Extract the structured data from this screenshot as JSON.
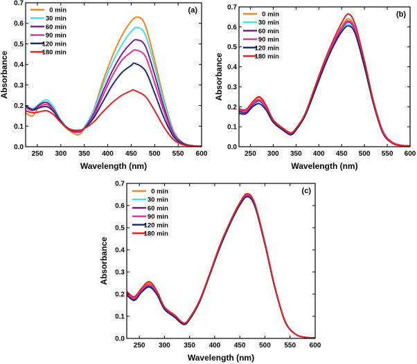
{
  "chart_data": [
    {
      "type": "line",
      "panel_label": "(a)",
      "xlabel": "Wavelength (nm)",
      "ylabel": "Absorbance",
      "xlim": [
        225,
        600
      ],
      "ylim": [
        0.0,
        0.7
      ],
      "xticks": [
        250,
        300,
        350,
        400,
        450,
        500,
        550,
        600
      ],
      "yticks": [
        0.0,
        0.1,
        0.2,
        0.3,
        0.4,
        0.5,
        0.6,
        0.7
      ],
      "ytick_labels": [
        "0.0",
        "0.1",
        "0.2",
        "0.3",
        "0.4",
        "0.5",
        "0.6",
        "0.7"
      ],
      "legend_position": "top-left",
      "series": [
        {
          "name": "0 min",
          "color": "#f5841f",
          "x": [
            225,
            240,
            255,
            270,
            285,
            300,
            320,
            338,
            350,
            370,
            390,
            410,
            430,
            450,
            465,
            480,
            500,
            520,
            540,
            560,
            580,
            600
          ],
          "y": [
            0.165,
            0.15,
            0.2,
            0.215,
            0.18,
            0.12,
            0.075,
            0.058,
            0.09,
            0.18,
            0.32,
            0.44,
            0.54,
            0.61,
            0.63,
            0.59,
            0.42,
            0.23,
            0.08,
            0.02,
            0.005,
            0.002
          ]
        },
        {
          "name": "30 min",
          "color": "#3fe0f0",
          "x": [
            225,
            240,
            255,
            270,
            285,
            300,
            320,
            338,
            350,
            370,
            390,
            410,
            430,
            450,
            463,
            480,
            500,
            520,
            540,
            560,
            580,
            600
          ],
          "y": [
            0.2,
            0.185,
            0.21,
            0.228,
            0.19,
            0.13,
            0.082,
            0.072,
            0.095,
            0.175,
            0.3,
            0.41,
            0.495,
            0.56,
            0.58,
            0.545,
            0.39,
            0.215,
            0.075,
            0.02,
            0.005,
            0.002
          ]
        },
        {
          "name": "60 min",
          "color": "#7b1f8a",
          "x": [
            225,
            240,
            255,
            270,
            285,
            300,
            320,
            338,
            350,
            370,
            390,
            410,
            430,
            450,
            462,
            480,
            500,
            520,
            540,
            560,
            580,
            600
          ],
          "y": [
            0.2,
            0.18,
            0.205,
            0.215,
            0.18,
            0.125,
            0.08,
            0.07,
            0.09,
            0.16,
            0.27,
            0.37,
            0.45,
            0.505,
            0.52,
            0.49,
            0.35,
            0.19,
            0.065,
            0.018,
            0.005,
            0.002
          ]
        },
        {
          "name": "90 min",
          "color": "#e62fa0",
          "x": [
            225,
            240,
            255,
            270,
            285,
            300,
            320,
            338,
            350,
            370,
            390,
            410,
            430,
            450,
            460,
            480,
            500,
            520,
            540,
            560,
            580,
            600
          ],
          "y": [
            0.19,
            0.175,
            0.195,
            0.205,
            0.175,
            0.12,
            0.08,
            0.072,
            0.088,
            0.15,
            0.25,
            0.345,
            0.42,
            0.46,
            0.47,
            0.44,
            0.31,
            0.17,
            0.058,
            0.016,
            0.004,
            0.002
          ]
        },
        {
          "name": "120 min",
          "color": "#1d2a7a",
          "x": [
            225,
            240,
            255,
            270,
            285,
            300,
            320,
            338,
            350,
            370,
            390,
            410,
            430,
            450,
            458,
            480,
            500,
            520,
            540,
            560,
            580,
            600
          ],
          "y": [
            0.2,
            0.18,
            0.19,
            0.195,
            0.17,
            0.12,
            0.082,
            0.078,
            0.088,
            0.14,
            0.22,
            0.3,
            0.36,
            0.395,
            0.405,
            0.37,
            0.26,
            0.14,
            0.05,
            0.014,
            0.004,
            0.002
          ]
        },
        {
          "name": "180 min",
          "color": "#e8201f",
          "x": [
            225,
            240,
            255,
            270,
            285,
            300,
            320,
            338,
            350,
            370,
            390,
            410,
            430,
            450,
            456,
            480,
            500,
            520,
            540,
            560,
            580,
            600
          ],
          "y": [
            0.175,
            0.165,
            0.17,
            0.175,
            0.155,
            0.118,
            0.085,
            0.08,
            0.088,
            0.12,
            0.17,
            0.215,
            0.25,
            0.272,
            0.275,
            0.245,
            0.175,
            0.095,
            0.035,
            0.01,
            0.003,
            0.002
          ]
        }
      ]
    },
    {
      "type": "line",
      "panel_label": "(b)",
      "xlabel": "Wavelength (nm)",
      "ylabel": "Absorbance",
      "xlim": [
        225,
        600
      ],
      "ylim": [
        0.0,
        0.7
      ],
      "xticks": [
        250,
        300,
        350,
        400,
        450,
        500,
        550,
        600
      ],
      "yticks": [
        0.0,
        0.1,
        0.2,
        0.3,
        0.4,
        0.5,
        0.6,
        0.7
      ],
      "ytick_labels": [
        "0.0",
        "0.1",
        "0.2",
        "0.3",
        "0.4",
        "0.5",
        "0.6",
        "0.7"
      ],
      "legend_position": "top-left",
      "series": [
        {
          "name": "0 min",
          "color": "#f5841f",
          "x": [
            225,
            240,
            255,
            270,
            285,
            300,
            320,
            338,
            350,
            370,
            390,
            410,
            430,
            450,
            465,
            480,
            500,
            520,
            540,
            560,
            580,
            600
          ],
          "y": [
            0.165,
            0.165,
            0.22,
            0.245,
            0.2,
            0.13,
            0.09,
            0.06,
            0.085,
            0.16,
            0.28,
            0.4,
            0.51,
            0.6,
            0.64,
            0.59,
            0.42,
            0.22,
            0.075,
            0.02,
            0.005,
            0.003
          ]
        },
        {
          "name": "30 min",
          "color": "#3fe0f0",
          "x": [
            225,
            240,
            255,
            270,
            285,
            300,
            320,
            338,
            350,
            370,
            390,
            410,
            430,
            450,
            465,
            480,
            500,
            520,
            540,
            560,
            580,
            600
          ],
          "y": [
            0.175,
            0.17,
            0.205,
            0.225,
            0.19,
            0.125,
            0.088,
            0.062,
            0.085,
            0.158,
            0.275,
            0.395,
            0.5,
            0.58,
            0.615,
            0.57,
            0.405,
            0.215,
            0.072,
            0.02,
            0.005,
            0.003
          ]
        },
        {
          "name": "60 min",
          "color": "#7b1f8a",
          "x": [
            225,
            240,
            255,
            270,
            285,
            300,
            320,
            338,
            350,
            370,
            390,
            410,
            430,
            450,
            465,
            480,
            500,
            520,
            540,
            560,
            580,
            600
          ],
          "y": [
            0.18,
            0.172,
            0.21,
            0.23,
            0.192,
            0.128,
            0.09,
            0.065,
            0.088,
            0.16,
            0.278,
            0.4,
            0.505,
            0.59,
            0.625,
            0.58,
            0.41,
            0.218,
            0.074,
            0.02,
            0.005,
            0.003
          ]
        },
        {
          "name": "90 min",
          "color": "#e62fa0",
          "x": [
            225,
            240,
            255,
            270,
            285,
            300,
            320,
            338,
            350,
            370,
            390,
            410,
            430,
            450,
            465,
            480,
            500,
            520,
            540,
            560,
            580,
            600
          ],
          "y": [
            0.185,
            0.178,
            0.215,
            0.235,
            0.195,
            0.13,
            0.092,
            0.068,
            0.09,
            0.163,
            0.282,
            0.405,
            0.512,
            0.595,
            0.63,
            0.585,
            0.418,
            0.225,
            0.08,
            0.024,
            0.008,
            0.005
          ]
        },
        {
          "name": "120 min",
          "color": "#1d2a7a",
          "x": [
            225,
            240,
            255,
            270,
            285,
            300,
            320,
            338,
            350,
            370,
            390,
            410,
            430,
            450,
            465,
            480,
            500,
            520,
            540,
            560,
            580,
            600
          ],
          "y": [
            0.17,
            0.165,
            0.2,
            0.215,
            0.182,
            0.122,
            0.085,
            0.06,
            0.083,
            0.155,
            0.27,
            0.39,
            0.495,
            0.575,
            0.605,
            0.565,
            0.4,
            0.212,
            0.07,
            0.019,
            0.005,
            0.003
          ]
        },
        {
          "name": "180 min",
          "color": "#e8201f",
          "x": [
            225,
            240,
            255,
            270,
            285,
            300,
            320,
            338,
            350,
            370,
            390,
            410,
            430,
            450,
            465,
            480,
            500,
            520,
            540,
            560,
            580,
            600
          ],
          "y": [
            0.19,
            0.185,
            0.225,
            0.25,
            0.205,
            0.135,
            0.095,
            0.07,
            0.092,
            0.165,
            0.29,
            0.415,
            0.525,
            0.62,
            0.665,
            0.61,
            0.43,
            0.225,
            0.076,
            0.02,
            0.005,
            0.003
          ]
        }
      ]
    },
    {
      "type": "line",
      "panel_label": "(c)",
      "xlabel": "Wavelength (nm)",
      "ylabel": "Absorbance",
      "xlim": [
        225,
        600
      ],
      "ylim": [
        0.0,
        0.7
      ],
      "xticks": [
        250,
        300,
        350,
        400,
        450,
        500,
        550,
        600
      ],
      "yticks": [
        0.0,
        0.1,
        0.2,
        0.3,
        0.4,
        0.5,
        0.6,
        0.7
      ],
      "ytick_labels": [
        "0.0",
        "0.1",
        "0.2",
        "0.3",
        "0.4",
        "0.5",
        "0.6",
        "0.7"
      ],
      "legend_position": "top-left",
      "series": [
        {
          "name": "0 min",
          "color": "#f5841f",
          "x": [
            225,
            240,
            255,
            270,
            285,
            300,
            320,
            338,
            350,
            370,
            390,
            410,
            430,
            450,
            465,
            480,
            500,
            520,
            540,
            560,
            580,
            600
          ],
          "y": [
            0.21,
            0.185,
            0.225,
            0.25,
            0.21,
            0.14,
            0.105,
            0.068,
            0.09,
            0.17,
            0.29,
            0.415,
            0.52,
            0.61,
            0.65,
            0.605,
            0.43,
            0.23,
            0.078,
            0.02,
            0.005,
            0.003
          ]
        },
        {
          "name": "30 min",
          "color": "#3fe0f0",
          "x": [
            225,
            240,
            255,
            270,
            285,
            300,
            320,
            338,
            350,
            370,
            390,
            410,
            430,
            450,
            465,
            480,
            500,
            520,
            540,
            560,
            580,
            600
          ],
          "y": [
            0.205,
            0.18,
            0.218,
            0.24,
            0.205,
            0.136,
            0.1,
            0.066,
            0.088,
            0.168,
            0.288,
            0.412,
            0.518,
            0.606,
            0.645,
            0.6,
            0.428,
            0.228,
            0.077,
            0.02,
            0.005,
            0.003
          ]
        },
        {
          "name": "60 min",
          "color": "#7b1f8a",
          "x": [
            225,
            240,
            255,
            270,
            285,
            300,
            320,
            338,
            350,
            370,
            390,
            410,
            430,
            450,
            465,
            480,
            500,
            520,
            540,
            560,
            580,
            600
          ],
          "y": [
            0.2,
            0.176,
            0.214,
            0.236,
            0.202,
            0.134,
            0.098,
            0.065,
            0.087,
            0.167,
            0.287,
            0.411,
            0.517,
            0.605,
            0.644,
            0.6,
            0.427,
            0.228,
            0.077,
            0.02,
            0.005,
            0.003
          ]
        },
        {
          "name": "90 min",
          "color": "#e62fa0",
          "x": [
            225,
            240,
            255,
            270,
            285,
            300,
            320,
            338,
            350,
            370,
            390,
            410,
            430,
            450,
            465,
            480,
            500,
            520,
            540,
            560,
            580,
            600
          ],
          "y": [
            0.206,
            0.181,
            0.22,
            0.244,
            0.207,
            0.138,
            0.102,
            0.067,
            0.089,
            0.169,
            0.289,
            0.414,
            0.52,
            0.608,
            0.648,
            0.603,
            0.43,
            0.23,
            0.078,
            0.02,
            0.005,
            0.003
          ]
        },
        {
          "name": "120 min",
          "color": "#1d2a7a",
          "x": [
            225,
            240,
            255,
            270,
            285,
            300,
            320,
            338,
            350,
            370,
            390,
            410,
            430,
            450,
            465,
            480,
            500,
            520,
            540,
            560,
            580,
            600
          ],
          "y": [
            0.196,
            0.172,
            0.21,
            0.232,
            0.198,
            0.132,
            0.096,
            0.063,
            0.085,
            0.165,
            0.285,
            0.408,
            0.514,
            0.602,
            0.64,
            0.596,
            0.424,
            0.226,
            0.076,
            0.02,
            0.005,
            0.003
          ]
        },
        {
          "name": "180 min",
          "color": "#e8201f",
          "x": [
            225,
            240,
            255,
            270,
            285,
            300,
            320,
            338,
            350,
            370,
            390,
            410,
            430,
            450,
            465,
            480,
            500,
            520,
            540,
            560,
            580,
            600
          ],
          "y": [
            0.212,
            0.188,
            0.228,
            0.256,
            0.214,
            0.142,
            0.106,
            0.07,
            0.092,
            0.172,
            0.292,
            0.418,
            0.523,
            0.613,
            0.654,
            0.608,
            0.432,
            0.231,
            0.078,
            0.02,
            0.005,
            0.003
          ]
        }
      ]
    }
  ]
}
